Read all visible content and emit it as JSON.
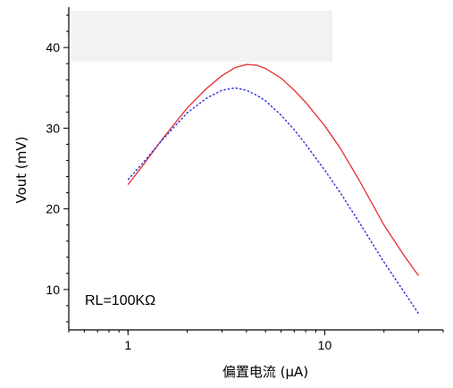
{
  "chart_data": {
    "type": "line",
    "title": "",
    "xlabel": "偏置电流 (μA)",
    "ylabel": "Vout (mV)",
    "xscale": "log",
    "xlim": [
      0.5,
      40
    ],
    "ylim": [
      5,
      45
    ],
    "xticks": [
      {
        "value": 1,
        "label": "1"
      },
      {
        "value": 10,
        "label": "10"
      }
    ],
    "yticks": [
      {
        "value": 10,
        "label": "10"
      },
      {
        "value": 20,
        "label": "20"
      },
      {
        "value": 30,
        "label": "30"
      },
      {
        "value": 40,
        "label": "40"
      }
    ],
    "grid": false,
    "annotation": "RL=100KΩ",
    "legend_placement": "top-left",
    "series": [
      {
        "color": "#e8393c",
        "style": "solid",
        "x": [
          1,
          1.2,
          1.5,
          2,
          2.5,
          3,
          3.5,
          4,
          4.5,
          5,
          6,
          7,
          8,
          10,
          12,
          15,
          20,
          25,
          30
        ],
        "y": [
          23.0,
          25.5,
          28.7,
          32.5,
          34.9,
          36.5,
          37.5,
          37.9,
          37.8,
          37.4,
          36.2,
          34.7,
          33.2,
          30.3,
          27.5,
          23.5,
          18.0,
          14.4,
          11.7
        ]
      },
      {
        "color": "#2e2ee0",
        "style": "dotted",
        "x": [
          1,
          1.2,
          1.5,
          2,
          2.5,
          3,
          3.5,
          4,
          4.5,
          5,
          6,
          7,
          8,
          10,
          12,
          15,
          20,
          25,
          30
        ],
        "y": [
          23.6,
          25.8,
          28.6,
          31.9,
          33.7,
          34.7,
          35.0,
          34.7,
          34.1,
          33.4,
          31.6,
          29.8,
          28.0,
          24.8,
          22.0,
          18.3,
          13.4,
          9.9,
          7.0
        ]
      }
    ]
  }
}
